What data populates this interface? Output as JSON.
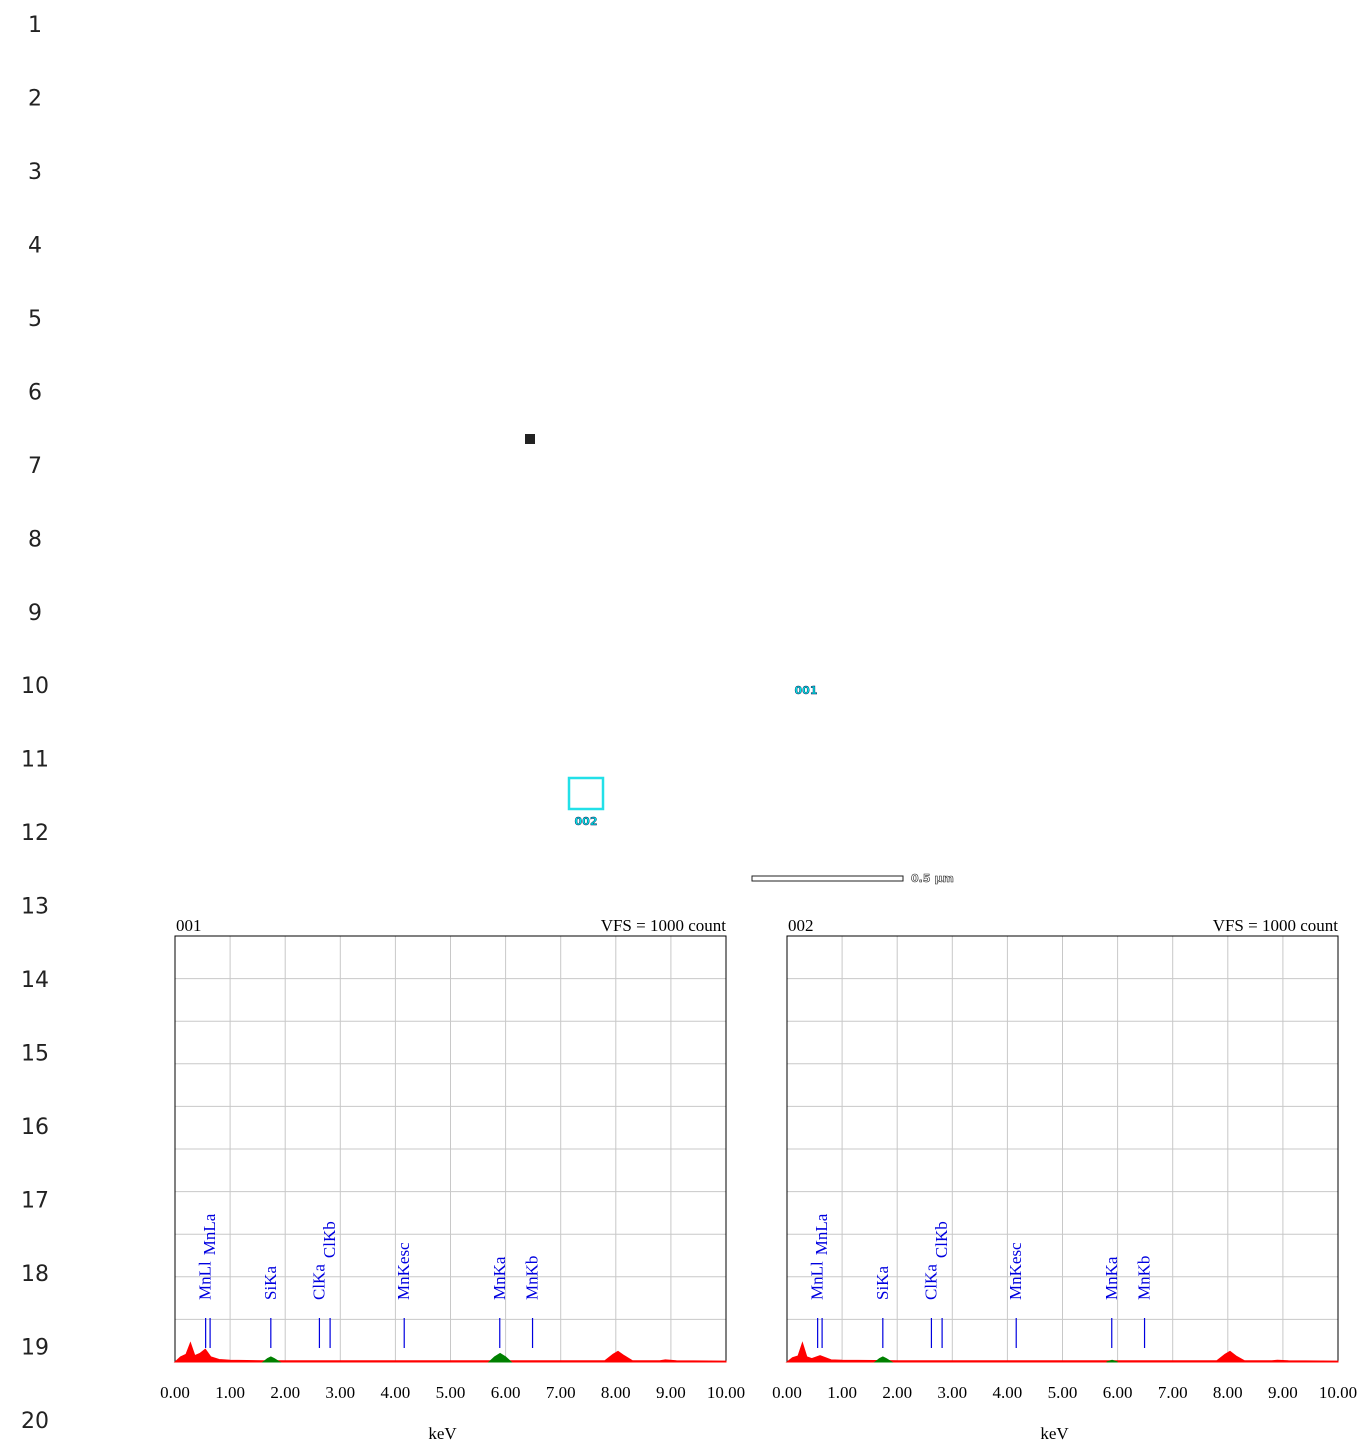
{
  "line_numbers": [
    1,
    2,
    3,
    4,
    5,
    6,
    7,
    8,
    9,
    10,
    11,
    12,
    13,
    14,
    15,
    16,
    17,
    18,
    19,
    20
  ],
  "image": {
    "points": [
      "001",
      "002"
    ],
    "scale_bar": "0.5 µm"
  },
  "panels": [
    {
      "label": "001",
      "vfs": "VFS = 1000 count",
      "xlabel": "keV",
      "xlim": [
        0,
        10
      ],
      "ylim": [
        0,
        1000
      ],
      "yticks": [
        0,
        100,
        200,
        300,
        400,
        500,
        600,
        700,
        800,
        900,
        1000
      ],
      "xticks": [
        {
          "value": 0,
          "label": "0.00"
        },
        {
          "value": 1,
          "label": "1.00"
        },
        {
          "value": 2,
          "label": "2.00"
        },
        {
          "value": 3,
          "label": "3.00"
        },
        {
          "value": 4,
          "label": "4.00"
        },
        {
          "value": 5,
          "label": "5.00"
        },
        {
          "value": 6,
          "label": "6.00"
        },
        {
          "value": 7,
          "label": "7.00"
        },
        {
          "value": 8,
          "label": "8.00"
        },
        {
          "value": 9,
          "label": "9.00"
        },
        {
          "value": 10,
          "label": "10.00"
        }
      ],
      "lines": [
        {
          "name": "MnLl",
          "energy": 0.556
        },
        {
          "name": "MnLa",
          "energy": 0.637
        },
        {
          "name": "SiKa",
          "energy": 1.739
        },
        {
          "name": "ClKa",
          "energy": 2.621
        },
        {
          "name": "ClKb",
          "energy": 2.815
        },
        {
          "name": "MnKesc",
          "energy": 4.16
        },
        {
          "name": "MnKa",
          "energy": 5.894
        },
        {
          "name": "MnKb",
          "energy": 6.489
        }
      ],
      "spectrum": {
        "color": "#ff0000",
        "x": [
          0,
          0.1,
          0.2,
          0.28,
          0.36,
          0.45,
          0.55,
          0.65,
          0.8,
          1,
          1.6,
          1.74,
          1.9,
          2.6,
          3,
          5.7,
          5.9,
          6.1,
          7.8,
          7.95,
          8.04,
          8.15,
          8.3,
          8.8,
          8.9,
          9.1,
          10
        ],
        "y": [
          0,
          12,
          18,
          45,
          15,
          20,
          30,
          12,
          6,
          4,
          3,
          3,
          3,
          3,
          3,
          3,
          3,
          3,
          3,
          18,
          25,
          15,
          3,
          3,
          5,
          3,
          2
        ]
      },
      "identified": [
        {
          "color": "#008000",
          "x": [
            1.6,
            1.68,
            1.74,
            1.8,
            1.9
          ],
          "y": [
            0,
            8,
            12,
            8,
            0
          ]
        },
        {
          "color": "#008000",
          "x": [
            5.7,
            5.8,
            5.9,
            6.0,
            6.1
          ],
          "y": [
            0,
            12,
            20,
            12,
            0
          ]
        }
      ]
    },
    {
      "label": "002",
      "vfs": "VFS = 1000 count",
      "xlabel": "keV",
      "xlim": [
        0,
        10
      ],
      "ylim": [
        0,
        1000
      ],
      "yticks": [
        0,
        100,
        200,
        300,
        400,
        500,
        600,
        700,
        800,
        900,
        1000
      ],
      "xticks": [
        {
          "value": 0,
          "label": "0.00"
        },
        {
          "value": 1,
          "label": "1.00"
        },
        {
          "value": 2,
          "label": "2.00"
        },
        {
          "value": 3,
          "label": "3.00"
        },
        {
          "value": 4,
          "label": "4.00"
        },
        {
          "value": 5,
          "label": "5.00"
        },
        {
          "value": 6,
          "label": "6.00"
        },
        {
          "value": 7,
          "label": "7.00"
        },
        {
          "value": 8,
          "label": "8.00"
        },
        {
          "value": 9,
          "label": "9.00"
        },
        {
          "value": 10,
          "label": "10.00"
        }
      ],
      "lines": [
        {
          "name": "MnLl",
          "energy": 0.556
        },
        {
          "name": "MnLa",
          "energy": 0.637
        },
        {
          "name": "SiKa",
          "energy": 1.739
        },
        {
          "name": "ClKa",
          "energy": 2.621
        },
        {
          "name": "ClKb",
          "energy": 2.815
        },
        {
          "name": "MnKesc",
          "energy": 4.16
        },
        {
          "name": "MnKa",
          "energy": 5.894
        },
        {
          "name": "MnKb",
          "energy": 6.489
        }
      ],
      "spectrum": {
        "color": "#ff0000",
        "x": [
          0,
          0.1,
          0.2,
          0.28,
          0.36,
          0.45,
          0.6,
          0.8,
          1,
          2,
          5,
          7.8,
          7.95,
          8.04,
          8.15,
          8.3,
          8.8,
          8.9,
          9.1,
          10
        ],
        "y": [
          0,
          10,
          14,
          45,
          12,
          8,
          15,
          5,
          4,
          3,
          3,
          3,
          18,
          25,
          14,
          3,
          3,
          4,
          3,
          2
        ]
      },
      "identified": [
        {
          "color": "#008000",
          "x": [
            1.6,
            1.68,
            1.74,
            1.8,
            1.9
          ],
          "y": [
            0,
            8,
            12,
            8,
            0
          ]
        },
        {
          "color": "#008000",
          "x": [
            5.8,
            5.9,
            6.0
          ],
          "y": [
            0,
            4,
            0
          ]
        }
      ]
    }
  ]
}
